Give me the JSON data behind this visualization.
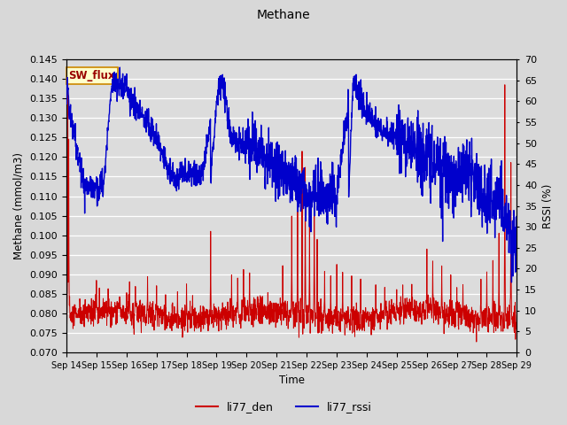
{
  "title": "Methane",
  "ylabel_left": "Methane (mmol/m3)",
  "ylabel_right": "RSSI (%)",
  "xlabel": "Time",
  "ylim_left": [
    0.07,
    0.145
  ],
  "ylim_right": [
    0,
    70
  ],
  "yticks_left": [
    0.07,
    0.075,
    0.08,
    0.085,
    0.09,
    0.095,
    0.1,
    0.105,
    0.11,
    0.115,
    0.12,
    0.125,
    0.13,
    0.135,
    0.14,
    0.145
  ],
  "yticks_right": [
    0,
    5,
    10,
    15,
    20,
    25,
    30,
    35,
    40,
    45,
    50,
    55,
    60,
    65,
    70
  ],
  "xtick_labels": [
    "Sep 14",
    "Sep 15",
    "Sep 16",
    "Sep 17",
    "Sep 18",
    "Sep 19",
    "Sep 20",
    "Sep 21",
    "Sep 22",
    "Sep 23",
    "Sep 24",
    "Sep 25",
    "Sep 26",
    "Sep 27",
    "Sep 28",
    "Sep 29"
  ],
  "fig_bg_color": "#d8d8d8",
  "plot_bg_color": "#dcdcdc",
  "line_color_den": "#cc0000",
  "line_color_rssi": "#0000cc",
  "legend_labels": [
    "li77_den",
    "li77_rssi"
  ],
  "annotation_text": "SW_flux",
  "annotation_bg": "#ffffcc",
  "annotation_border": "#cc8800",
  "grid_color": "#ffffff",
  "linewidth_den": 0.7,
  "linewidth_rssi": 1.0
}
